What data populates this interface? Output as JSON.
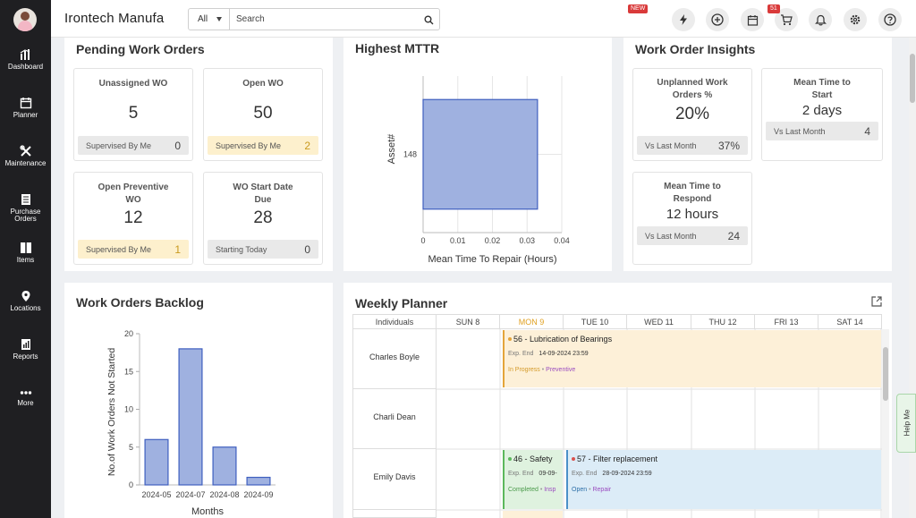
{
  "app": {
    "brand": "Irontech Manufa"
  },
  "sidebar": {
    "items": [
      {
        "label": "Dashboard",
        "icon": "dashboard-icon"
      },
      {
        "label": "Planner",
        "icon": "planner-icon"
      },
      {
        "label": "Maintenance",
        "icon": "maintenance-icon"
      },
      {
        "label_line1": "Purchase",
        "label_line2": "Orders",
        "icon": "purchase-orders-icon"
      },
      {
        "label": "Items",
        "icon": "items-icon"
      },
      {
        "label": "Locations",
        "icon": "location-pin-icon"
      },
      {
        "label": "Reports",
        "icon": "reports-icon"
      },
      {
        "label": "More",
        "icon": "more-dots-icon"
      }
    ]
  },
  "topbar": {
    "search_scope": "All",
    "search_placeholder": "Search",
    "new_badge": "NEW",
    "notification_count": "51",
    "icons": [
      "lightning-icon",
      "add-circle-icon",
      "calendar-icon",
      "cart-icon",
      "bell-icon",
      "gear-icon",
      "help-icon"
    ]
  },
  "pending": {
    "title": "Pending Work Orders",
    "cards": [
      {
        "title": "Unassigned WO",
        "value": "5",
        "foot_label": "Supervised By Me",
        "foot_value": "0"
      },
      {
        "title": "Open WO",
        "value": "50",
        "foot_label": "Supervised By Me",
        "foot_value": "2"
      },
      {
        "title_line1": "Open Preventive",
        "title_line2": "WO",
        "value": "12",
        "foot_label": "Supervised By Me",
        "foot_value": "1"
      },
      {
        "title_line1": "WO Start Date",
        "title_line2": "Due",
        "value": "28",
        "foot_label": "Starting Today",
        "foot_value": "0"
      }
    ]
  },
  "mttr": {
    "title": "Highest MTTR",
    "ylabel": "Asset#",
    "xlabel": "Mean Time To Repair (Hours)"
  },
  "insights": {
    "title": "Work Order Insights",
    "cards": [
      {
        "title_line1": "Unplanned Work",
        "title_line2": "Orders %",
        "value": "20%",
        "foot_label": "Vs Last Month",
        "foot_value": "37%"
      },
      {
        "title_line1": "Mean Time to",
        "title_line2": "Start",
        "value": "2 days",
        "foot_label": "Vs Last Month",
        "foot_value": "4"
      },
      {
        "title_line1": "Mean Time to",
        "title_line2": "Respond",
        "value": "12 hours",
        "foot_label": "Vs Last Month",
        "foot_value": "24"
      }
    ]
  },
  "backlog": {
    "title": "Work Orders Backlog",
    "ylabel": "No.of Work Orders Not Started",
    "xlabel": "Months"
  },
  "planner": {
    "title": "Weekly Planner",
    "columns": [
      "Individuals",
      "SUN 8",
      "MON 9",
      "TUE 10",
      "WED 11",
      "THU 12",
      "FRI 13",
      "SAT 14"
    ],
    "rows": [
      "Charles Boyle",
      "Charli Dean",
      "Emily Davis"
    ],
    "events": [
      {
        "title": "56 - Lubrication of Bearings",
        "exp_label": "Exp. End",
        "exp_date": "14-09-2024 23:59",
        "status": "In Progress",
        "type": "Preventive"
      },
      {
        "title": "46 - Safety",
        "exp_label": "Exp. End",
        "exp_date": "09-09-",
        "status": "Completed",
        "type": "Insp"
      },
      {
        "title": "57 - Filter replacement",
        "exp_label": "Exp. End",
        "exp_date": "28-09-2024 23:59",
        "status": "Open",
        "type": "Repair"
      }
    ]
  },
  "help_tab": "Help Me",
  "chart_data": [
    {
      "type": "bar",
      "orientation": "horizontal",
      "title": "Highest MTTR",
      "categories": [
        "148"
      ],
      "values": [
        0.033
      ],
      "xlabel": "Mean Time To Repair (Hours)",
      "ylabel": "Asset#",
      "xlim": [
        0,
        0.04
      ],
      "xticks": [
        "0",
        "0.01",
        "0.02",
        "0.03",
        "0.04"
      ],
      "color": "#9fb1e0"
    },
    {
      "type": "bar",
      "title": "Work Orders Backlog",
      "categories": [
        "2024-05",
        "2024-07",
        "2024-08",
        "2024-09"
      ],
      "values": [
        6,
        18,
        5,
        1
      ],
      "xlabel": "Months",
      "ylabel": "No.of Work Orders Not Started",
      "ylim": [
        0,
        20
      ],
      "yticks": [
        "0",
        "5",
        "10",
        "15",
        "20"
      ],
      "color": "#9fb1e0"
    }
  ]
}
